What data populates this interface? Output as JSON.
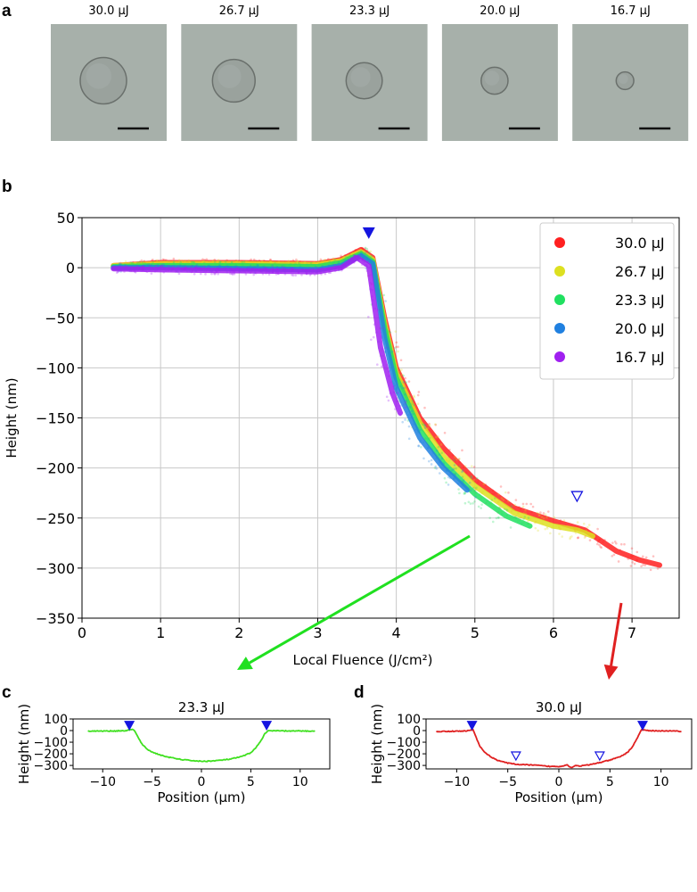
{
  "panel_labels": {
    "a": "a",
    "b": "b",
    "c": "c",
    "d": "d"
  },
  "panel_a": {
    "images": [
      {
        "title": "30.0 μJ",
        "spot_size": 1.0
      },
      {
        "title": "26.7 μJ",
        "spot_size": 0.92
      },
      {
        "title": "23.3 μJ",
        "spot_size": 0.78
      },
      {
        "title": "20.0 μJ",
        "spot_size": 0.58
      },
      {
        "title": "16.7 μJ",
        "spot_size": 0.38
      }
    ]
  },
  "chart_data": [
    {
      "type": "scatter",
      "panel": "b",
      "title": "",
      "xlabel": "Local Fluence (J/cm²)",
      "ylabel": "Height (nm)",
      "xlim": [
        0,
        7.6
      ],
      "ylim": [
        -350,
        50
      ],
      "xticks": [
        0,
        1,
        2,
        3,
        4,
        5,
        6,
        7
      ],
      "yticks": [
        50,
        0,
        -50,
        -100,
        -150,
        -200,
        -250,
        -300,
        -350
      ],
      "grid": true,
      "legend_position": "top-right",
      "series": [
        {
          "name": "30.0 μJ",
          "color": "#ff2020",
          "x": [
            0.4,
            1.0,
            2.0,
            3.0,
            3.3,
            3.55,
            3.7,
            3.85,
            4.0,
            4.3,
            4.6,
            5.0,
            5.5,
            6.0,
            6.4,
            6.8,
            7.1,
            7.35
          ],
          "y": [
            2,
            5,
            5,
            4,
            8,
            18,
            10,
            -50,
            -100,
            -150,
            -180,
            -212,
            -240,
            -253,
            -262,
            -283,
            -292,
            -297
          ]
        },
        {
          "name": "26.7 μJ",
          "color": "#dde020",
          "x": [
            0.4,
            1.0,
            2.0,
            3.0,
            3.3,
            3.55,
            3.7,
            3.85,
            4.0,
            4.3,
            4.6,
            5.0,
            5.5,
            6.0,
            6.3,
            6.5
          ],
          "y": [
            2,
            4,
            4,
            3,
            7,
            16,
            8,
            -55,
            -105,
            -155,
            -188,
            -218,
            -245,
            -258,
            -262,
            -268
          ]
        },
        {
          "name": "23.3 μJ",
          "color": "#20e060",
          "x": [
            0.4,
            1.0,
            2.0,
            3.0,
            3.3,
            3.55,
            3.7,
            3.85,
            4.0,
            4.3,
            4.6,
            5.0,
            5.4,
            5.7
          ],
          "y": [
            1,
            2,
            2,
            1,
            5,
            14,
            6,
            -60,
            -110,
            -162,
            -195,
            -226,
            -248,
            -258
          ]
        },
        {
          "name": "20.0 μJ",
          "color": "#2080e0",
          "x": [
            0.4,
            1.0,
            2.0,
            3.0,
            3.3,
            3.55,
            3.7,
            3.85,
            4.0,
            4.3,
            4.6,
            4.9
          ],
          "y": [
            0,
            0,
            -1,
            -2,
            2,
            12,
            4,
            -70,
            -120,
            -170,
            -200,
            -222
          ]
        },
        {
          "name": "16.7 μJ",
          "color": "#a020f0",
          "x": [
            0.4,
            1.0,
            2.0,
            3.0,
            3.3,
            3.5,
            3.65,
            3.8,
            3.95,
            4.05
          ],
          "y": [
            -1,
            -2,
            -3,
            -4,
            0,
            10,
            2,
            -80,
            -125,
            -145
          ]
        }
      ],
      "annotations": {
        "filled_marker": {
          "x": 3.65,
          "y": 35,
          "color": "#1515e0"
        },
        "open_marker": {
          "x": 6.3,
          "y": -228,
          "color": "#1515e0"
        }
      }
    },
    {
      "type": "line",
      "panel": "c",
      "title": "23.3 μJ",
      "xlabel": "Position (μm)",
      "ylabel": "Height (nm)",
      "xlim": [
        -13,
        13
      ],
      "ylim": [
        -330,
        100
      ],
      "xticks": [
        -10,
        -5,
        0,
        5,
        10
      ],
      "yticks": [
        100,
        0,
        -100,
        -200,
        -300
      ],
      "color": "#40e020",
      "x": [
        -11.5,
        -10,
        -8.5,
        -7.5,
        -7.0,
        -6.8,
        -6.4,
        -6.0,
        -5.5,
        -5.0,
        -4.5,
        -4.0,
        -3.0,
        -2.0,
        -1.0,
        0.0,
        1.0,
        2.0,
        3.0,
        4.0,
        4.5,
        5.0,
        5.5,
        6.0,
        6.4,
        6.8,
        7.2,
        8.5,
        10.0,
        11.5
      ],
      "y": [
        -5,
        -4,
        -3,
        0,
        12,
        0,
        -60,
        -120,
        -160,
        -185,
        -200,
        -215,
        -235,
        -250,
        -258,
        -265,
        -262,
        -255,
        -245,
        -225,
        -210,
        -190,
        -150,
        -90,
        -30,
        0,
        -2,
        -3,
        -4,
        -5
      ],
      "markers_filled": [
        {
          "x": -7.3,
          "y": 45
        },
        {
          "x": 6.6,
          "y": 45
        }
      ],
      "marker_color": "#1515e0"
    },
    {
      "type": "line",
      "panel": "d",
      "title": "30.0 μJ",
      "xlabel": "Position (μm)",
      "ylabel": "Height (nm)",
      "xlim": [
        -13,
        13
      ],
      "ylim": [
        -330,
        100
      ],
      "xticks": [
        -10,
        -5,
        0,
        5,
        10
      ],
      "yticks": [
        100,
        0,
        -100,
        -200,
        -300
      ],
      "color": "#e02020",
      "x": [
        -12,
        -10.5,
        -9.3,
        -8.7,
        -8.4,
        -8.1,
        -7.7,
        -7.2,
        -6.7,
        -6.0,
        -5.0,
        -4.0,
        -3.0,
        -2.0,
        -1.0,
        0.0,
        0.8,
        1.2,
        1.6,
        2.0,
        3.0,
        4.0,
        5.0,
        6.0,
        6.7,
        7.2,
        7.7,
        8.1,
        8.5,
        9.5,
        11,
        12
      ],
      "y": [
        -8,
        -6,
        -4,
        0,
        10,
        -60,
        -140,
        -190,
        -225,
        -255,
        -280,
        -292,
        -295,
        -300,
        -308,
        -310,
        -295,
        -320,
        -300,
        -305,
        -295,
        -275,
        -255,
        -225,
        -190,
        -140,
        -60,
        10,
        0,
        -2,
        -4,
        -6
      ],
      "markers_filled": [
        {
          "x": -8.5,
          "y": 45
        },
        {
          "x": 8.2,
          "y": 45
        }
      ],
      "markers_open": [
        {
          "x": -4.2,
          "y": -215
        },
        {
          "x": 4.0,
          "y": -215
        }
      ],
      "marker_color": "#1515e0"
    }
  ],
  "arrows": {
    "green": "#20e020",
    "red": "#e02020"
  }
}
